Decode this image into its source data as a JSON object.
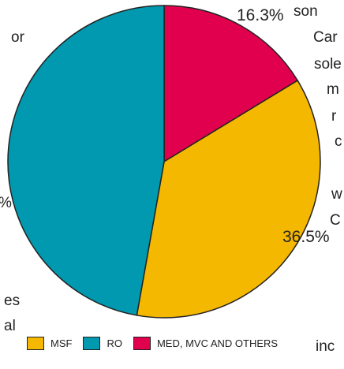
{
  "background_fragments": {
    "t1": "or",
    "t2": "son",
    "t3": "Car",
    "t4": "sole",
    "t5": "m",
    "t6": "r",
    "t7": "c",
    "t8": "%",
    "t9": "w",
    "t10": "C",
    "t11": "es",
    "t12": "al",
    "t13": "inc"
  },
  "colors": {
    "MSF": "#f5b800",
    "RO": "#0099b0",
    "MED": "#e0004d",
    "edge": "#222222"
  },
  "chart_data": {
    "type": "pie",
    "slices": [
      {
        "name": "MED, MVC AND OTHERS",
        "value": 16.3,
        "label": "16.3%"
      },
      {
        "name": "MSF",
        "value": 36.5,
        "label": "36.5%"
      },
      {
        "name": "RO",
        "value": 47.2,
        "label": ""
      }
    ],
    "legend": [
      {
        "name": "MSF"
      },
      {
        "name": "RO"
      },
      {
        "name": "MED, MVC AND OTHERS"
      }
    ],
    "legend_position": "bottom"
  }
}
